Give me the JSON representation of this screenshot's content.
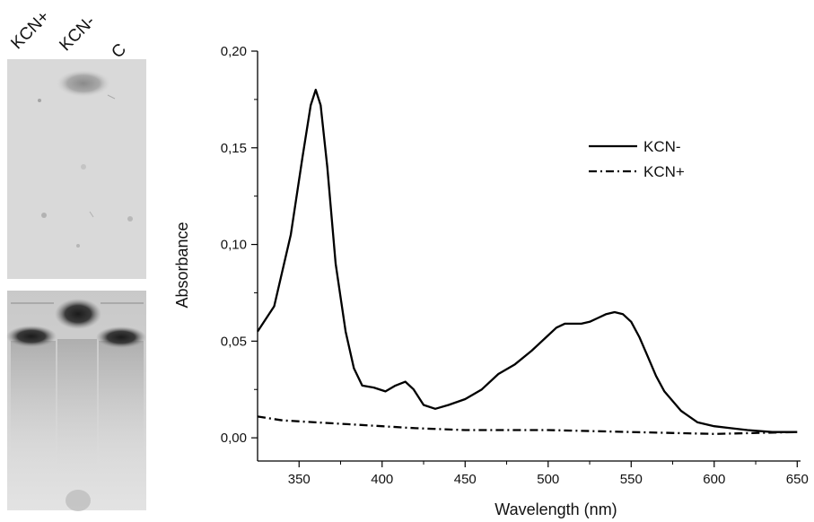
{
  "gel": {
    "lanes": [
      "KCN+",
      "KCN-",
      "C"
    ]
  },
  "chart_data": {
    "type": "line",
    "xlabel": "Wavelength (nm)",
    "ylabel": "Absorbance",
    "xlim": [
      325,
      652
    ],
    "ylim": [
      -0.012,
      0.2
    ],
    "xticks": [
      350,
      400,
      450,
      500,
      550,
      600,
      650
    ],
    "xtick_labels": [
      "350",
      "400",
      "450",
      "500",
      "550",
      "600",
      "650"
    ],
    "yticks": [
      0.0,
      0.05,
      0.1,
      0.15,
      0.2
    ],
    "ytick_labels": [
      "0,00",
      "0,05",
      "0,10",
      "0,15",
      "0,20"
    ],
    "grid": false,
    "legend_position": "upper-right",
    "series": [
      {
        "name": "KCN-",
        "line_style": "solid",
        "color": "#000000",
        "x": [
          325,
          335,
          345,
          352,
          357,
          360,
          363,
          367,
          372,
          378,
          383,
          388,
          395,
          402,
          408,
          414,
          419,
          425,
          432,
          440,
          450,
          460,
          470,
          480,
          490,
          500,
          505,
          510,
          515,
          520,
          525,
          530,
          535,
          540,
          545,
          550,
          555,
          560,
          565,
          570,
          580,
          590,
          600,
          610,
          620,
          635,
          650
        ],
        "values": [
          0.055,
          0.068,
          0.105,
          0.145,
          0.172,
          0.18,
          0.172,
          0.14,
          0.09,
          0.055,
          0.036,
          0.027,
          0.026,
          0.024,
          0.027,
          0.029,
          0.025,
          0.017,
          0.015,
          0.017,
          0.02,
          0.025,
          0.033,
          0.038,
          0.045,
          0.053,
          0.057,
          0.059,
          0.059,
          0.059,
          0.06,
          0.062,
          0.064,
          0.065,
          0.064,
          0.06,
          0.052,
          0.042,
          0.032,
          0.024,
          0.014,
          0.008,
          0.006,
          0.005,
          0.004,
          0.003,
          0.003
        ]
      },
      {
        "name": "KCN+",
        "line_style": "dash-dot",
        "color": "#000000",
        "x": [
          325,
          340,
          360,
          380,
          400,
          420,
          450,
          500,
          550,
          600,
          650
        ],
        "values": [
          0.011,
          0.009,
          0.008,
          0.007,
          0.006,
          0.005,
          0.004,
          0.004,
          0.003,
          0.002,
          0.003
        ]
      }
    ]
  }
}
